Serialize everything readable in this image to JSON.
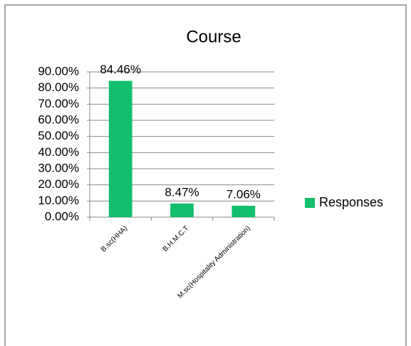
{
  "chart_data": {
    "type": "bar",
    "title": "Course",
    "categories": [
      "B.sc(HHA)",
      "B.H.M.C.T",
      "M.sc(Hospitality Administration)"
    ],
    "series": [
      {
        "name": "Responses",
        "color": "#13bf6c",
        "values": [
          84.46,
          8.47,
          7.06
        ],
        "value_labels": [
          "84.46%",
          "8.47%",
          "7.06%"
        ]
      }
    ],
    "ylim": [
      0,
      90
    ],
    "yticks": [
      {
        "value": 0,
        "label": "0.00%"
      },
      {
        "value": 10,
        "label": "10.00%"
      },
      {
        "value": 20,
        "label": "20.00%"
      },
      {
        "value": 30,
        "label": "30.00%"
      },
      {
        "value": 40,
        "label": "40.00%"
      },
      {
        "value": 50,
        "label": "50.00%"
      },
      {
        "value": 60,
        "label": "60.00%"
      },
      {
        "value": 70,
        "label": "70.00%"
      },
      {
        "value": 80,
        "label": "80.00%"
      },
      {
        "value": 90,
        "label": "90.00%"
      }
    ],
    "grid": true,
    "legend": "right"
  }
}
